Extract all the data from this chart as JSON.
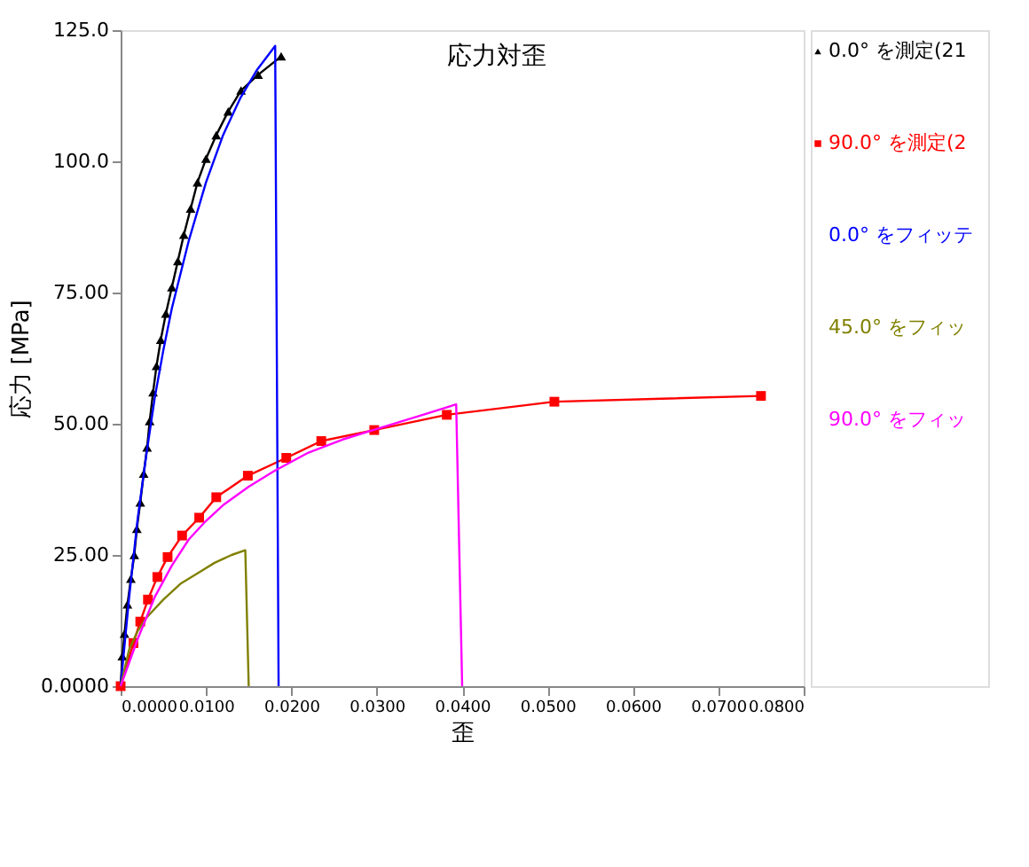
{
  "chart_data": {
    "type": "line",
    "title": "応力対歪",
    "xlabel": "歪",
    "ylabel": "応力 [MPa]",
    "xlim": [
      0,
      0.08
    ],
    "ylim": [
      0,
      125
    ],
    "xticks": [
      {
        "value": 0,
        "label": "0.0000"
      },
      {
        "value": 0.01,
        "label": "0.0100"
      },
      {
        "value": 0.02,
        "label": "0.0200"
      },
      {
        "value": 0.03,
        "label": "0.0300"
      },
      {
        "value": 0.04,
        "label": "0.0400"
      },
      {
        "value": 0.05,
        "label": "0.0500"
      },
      {
        "value": 0.06,
        "label": "0.0600"
      },
      {
        "value": 0.07,
        "label": "0.0700"
      },
      {
        "value": 0.08,
        "label": "0.0800"
      }
    ],
    "yticks": [
      {
        "value": 0,
        "label": "0.0000"
      },
      {
        "value": 25,
        "label": "25.00"
      },
      {
        "value": 50,
        "label": "50.00"
      },
      {
        "value": 75,
        "label": "75.00"
      },
      {
        "value": 100,
        "label": "100.0"
      },
      {
        "value": 125,
        "label": "125.0"
      }
    ],
    "grid": false,
    "legend": "right",
    "line_style": "solid",
    "series": [
      {
        "name": "0.0° を測定(21",
        "color": "#000000",
        "marker": "triangle",
        "x": [
          0,
          0.0002,
          0.00045,
          0.0008,
          0.0012,
          0.0016,
          0.0019,
          0.0023,
          0.0027,
          0.0031,
          0.0034,
          0.0038,
          0.0042,
          0.0047,
          0.0053,
          0.006,
          0.0067,
          0.0074,
          0.0082,
          0.009,
          0.01,
          0.0112,
          0.0126,
          0.0141,
          0.0161,
          0.0188
        ],
        "values": [
          0,
          5.7,
          10,
          15.6,
          20.5,
          25,
          30,
          35,
          40.5,
          45.5,
          50.5,
          56,
          61,
          66,
          71,
          76,
          81,
          86,
          91,
          96,
          100.5,
          105,
          109.5,
          113.5,
          116.5,
          120
        ]
      },
      {
        "name": "90.0° を測定(2",
        "color": "#ff0000",
        "marker": "square",
        "x": [
          0,
          0.0015,
          0.0023,
          0.0032,
          0.0043,
          0.0055,
          0.0072,
          0.0092,
          0.0112,
          0.0149,
          0.0194,
          0.0235,
          0.0297,
          0.0382,
          0.0508,
          0.075
        ],
        "values": [
          0,
          8.2,
          12.3,
          16.5,
          20.8,
          24.6,
          28.7,
          32.1,
          36,
          40.1,
          43.5,
          46.7,
          48.8,
          51.7,
          54.2,
          55.3
        ]
      },
      {
        "name": "0.0° をフィッテ",
        "color": "#0000ff",
        "marker": "none",
        "x": [
          0,
          0.001,
          0.002,
          0.003,
          0.004,
          0.005,
          0.006,
          0.008,
          0.01,
          0.012,
          0.014,
          0.016,
          0.0181,
          0.0185
        ],
        "values": [
          0,
          17,
          32,
          44,
          55,
          64,
          72,
          85,
          96,
          105,
          112,
          117.5,
          122,
          0
        ]
      },
      {
        "name": "45.0° をフィッ",
        "color": "#808000",
        "marker": "none",
        "x": [
          0,
          0.001,
          0.002,
          0.003,
          0.005,
          0.007,
          0.009,
          0.011,
          0.013,
          0.0146,
          0.015
        ],
        "values": [
          0,
          7,
          10.5,
          13,
          16.5,
          19.5,
          21.5,
          23.5,
          25,
          25.9,
          0
        ]
      },
      {
        "name": "90.0° をフィッ",
        "color": "#ff00ff",
        "marker": "none",
        "x": [
          0,
          0.002,
          0.004,
          0.006,
          0.008,
          0.01,
          0.012,
          0.015,
          0.018,
          0.022,
          0.026,
          0.03,
          0.035,
          0.0393,
          0.04
        ],
        "values": [
          0,
          9,
          17,
          23,
          28,
          31.5,
          34.5,
          38,
          41,
          44.5,
          47,
          49,
          51.5,
          53.7,
          0
        ]
      }
    ]
  }
}
